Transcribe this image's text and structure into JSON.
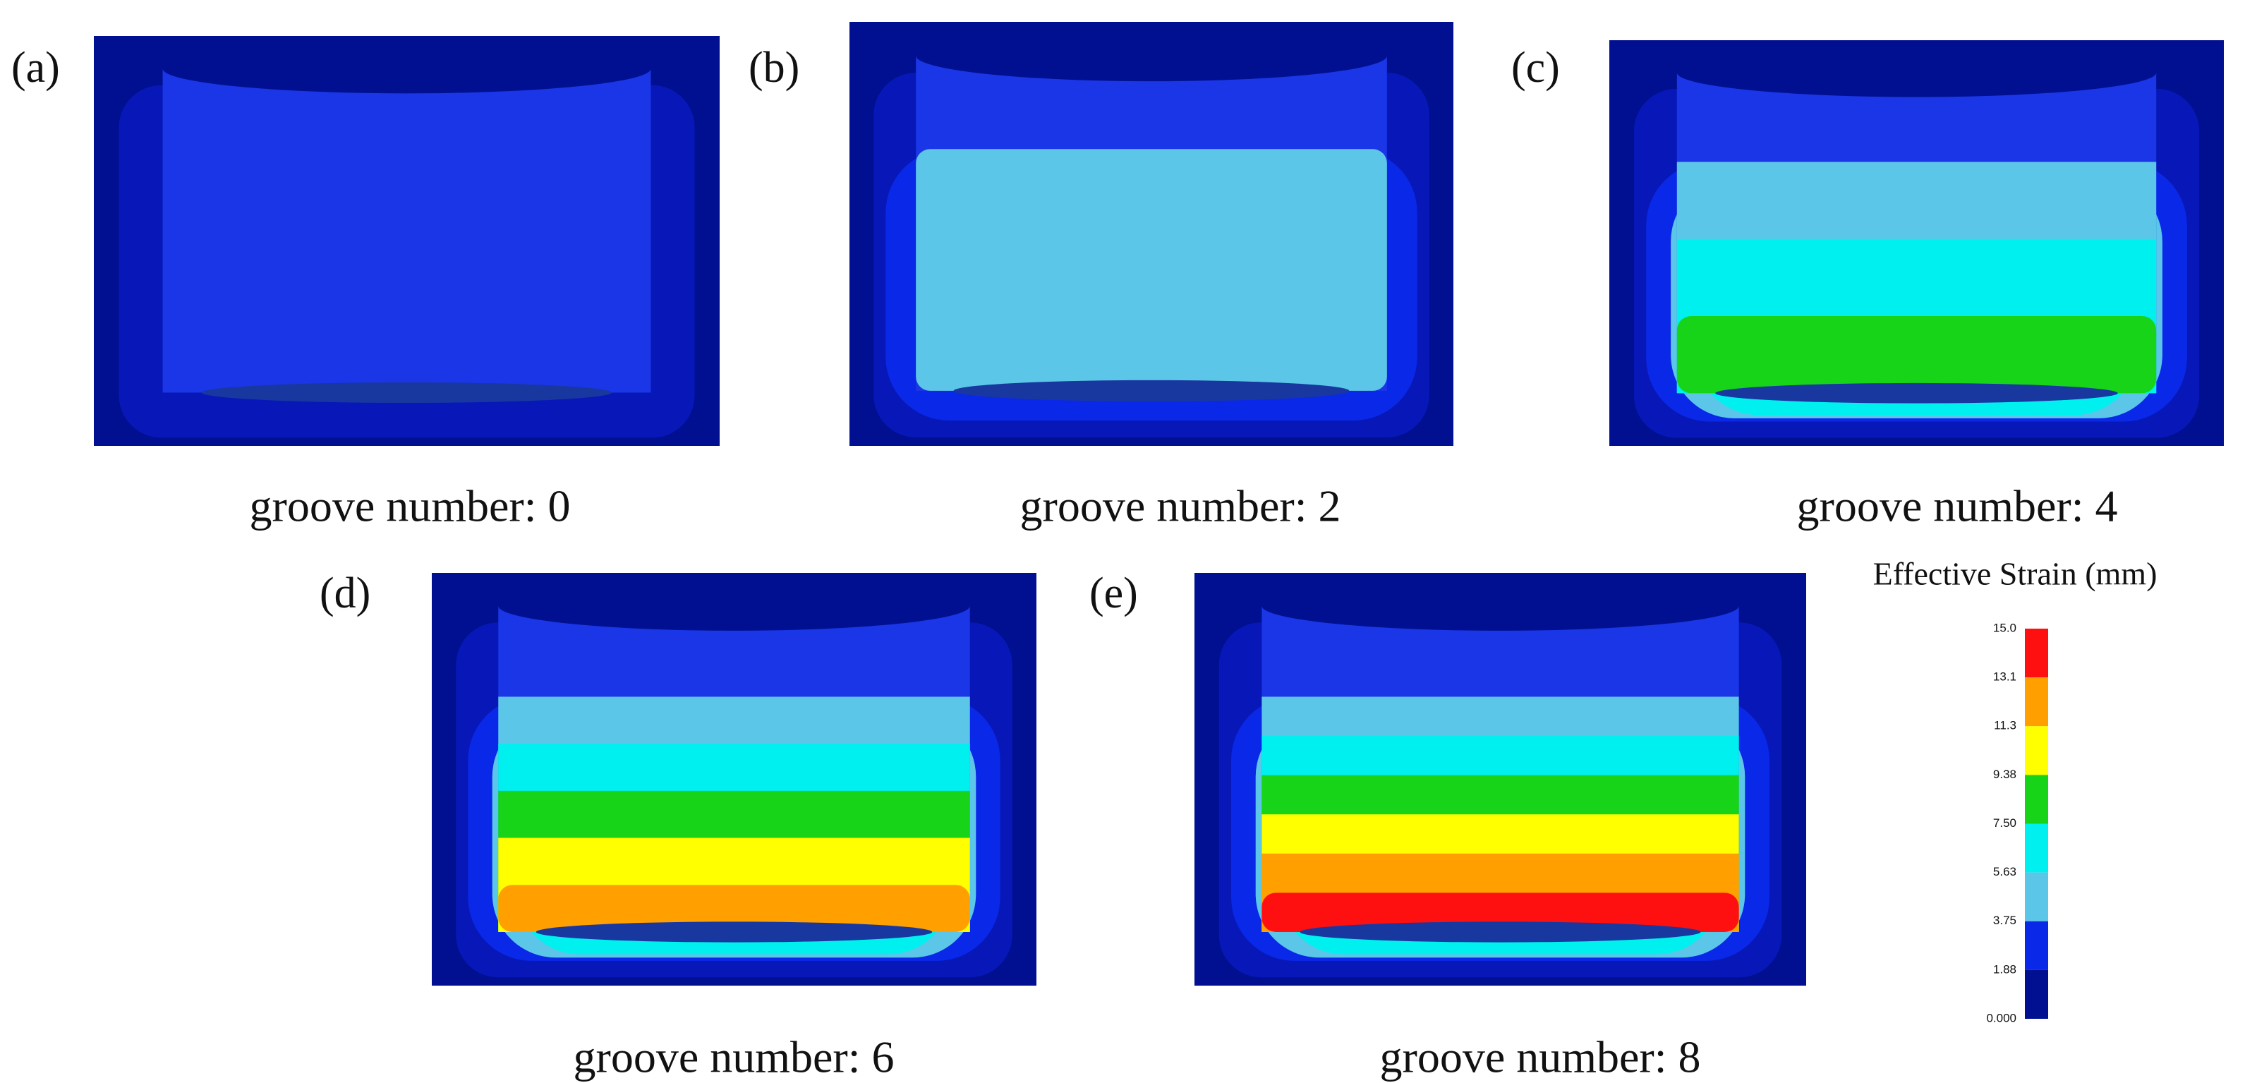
{
  "panels": [
    {
      "label": "(a)",
      "caption": "groove number: 0"
    },
    {
      "label": "(b)",
      "caption": "groove number: 2"
    },
    {
      "label": "(c)",
      "caption": "groove number: 4"
    },
    {
      "label": "(d)",
      "caption": "groove number: 6"
    },
    {
      "label": "(e)",
      "caption": "groove number: 8"
    }
  ],
  "legend": {
    "title": "Effective Strain (mm)",
    "ticks": [
      "15.0",
      "13.1",
      "11.3",
      "9.38",
      "7.50",
      "5.63",
      "3.75",
      "1.88",
      "0.000"
    ]
  }
}
